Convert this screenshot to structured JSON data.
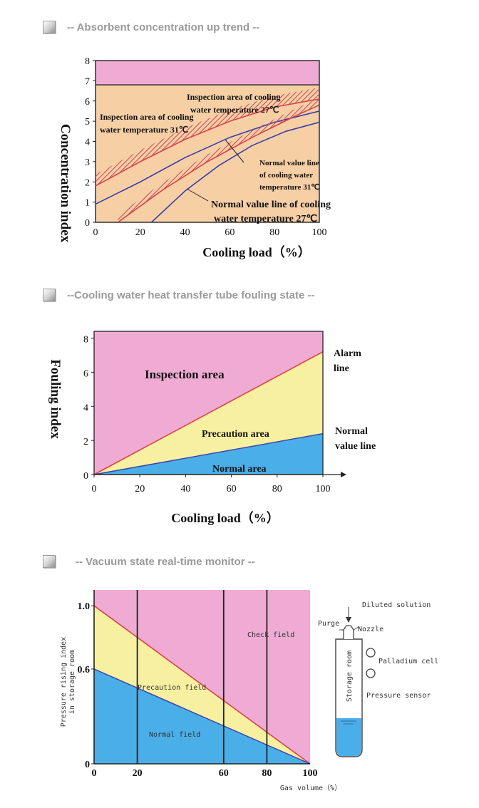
{
  "sections": [
    {
      "title": "-- Absorbent concentration up trend --"
    },
    {
      "title": "--Cooling water heat transfer tube fouling state --"
    },
    {
      "title": "-- Vacuum state real-time monitor --"
    }
  ],
  "colors": {
    "pink": "#efabd3",
    "orange": "#f6cfa5",
    "yellow": "#f7f0a0",
    "blue": "#4aaee8",
    "red": "#d9434d",
    "navy": "#3c3ea8",
    "hatch": "#c84f5a"
  },
  "chart_data": [
    {
      "type": "line",
      "xlabel": "Cooling load（%）",
      "ylabel": "Concentration index",
      "xlim": [
        0,
        100
      ],
      "ylim": [
        0,
        8
      ],
      "xticks": [
        "0",
        "20",
        "40",
        "60",
        "80",
        "100"
      ],
      "yticks": [
        "0",
        "1",
        "2",
        "3",
        "4",
        "5",
        "6",
        "7",
        "8"
      ],
      "upper_band_start": 6.8,
      "series": [
        {
          "name": "Normal value line of cooling water temperature 27℃",
          "x": [
            25,
            40,
            55,
            70,
            85,
            100
          ],
          "y": [
            0,
            1.55,
            2.8,
            3.8,
            4.5,
            4.95
          ]
        },
        {
          "name": "Normal value line of cooling water temperature 31℃",
          "x": [
            0,
            20,
            40,
            60,
            80,
            100
          ],
          "y": [
            0.9,
            2.0,
            3.2,
            4.2,
            4.95,
            5.5
          ]
        },
        {
          "name": "Inspection area of cooling water temperature 27℃",
          "x": [
            10,
            30,
            50,
            70,
            90,
            100
          ],
          "y": [
            0,
            1.6,
            3.0,
            4.2,
            5.3,
            5.8
          ]
        },
        {
          "name": "Inspection area of cooling water temperature 31℃",
          "x": [
            0,
            20,
            40,
            60,
            80,
            100
          ],
          "y": [
            1.8,
            3.0,
            4.1,
            5.0,
            5.7,
            6.1
          ]
        }
      ],
      "annotations": [
        {
          "text": "Inspection area of cooling"
        },
        {
          "text": "water temperature 27℃"
        },
        {
          "text": "Inspection area of cooling"
        },
        {
          "text": "water temperature 31℃"
        },
        {
          "text": "Normal value line"
        },
        {
          "text": "of cooling water"
        },
        {
          "text": "temperature 31℃"
        },
        {
          "text": "Normal value line of cooling"
        },
        {
          "text": "water temperature 27℃"
        }
      ]
    },
    {
      "type": "area",
      "xlabel": "Cooling load（%）",
      "ylabel": "Fouling index",
      "xlim": [
        0,
        100
      ],
      "ylim": [
        0,
        8.4
      ],
      "xticks": [
        "0",
        "20",
        "40",
        "60",
        "80",
        "100"
      ],
      "yticks": [
        "0",
        "2",
        "4",
        "6",
        "8"
      ],
      "series": [
        {
          "name": "Alarm line",
          "x": [
            0,
            100
          ],
          "y": [
            0,
            7.2
          ]
        },
        {
          "name": "Normal value line",
          "x": [
            0,
            100
          ],
          "y": [
            0,
            2.4
          ]
        }
      ],
      "regions": [
        "Inspection area",
        "Precaution area",
        "Normal area"
      ],
      "labels": {
        "alarm": [
          "Alarm",
          "line"
        ],
        "normal": [
          "Normal",
          "value line"
        ]
      }
    },
    {
      "type": "area",
      "xlabel": "Gas volume（%）",
      "ylabel": [
        "Pressure rising index",
        "in storage room"
      ],
      "xlim": [
        0,
        100
      ],
      "ylim": [
        0,
        1.1
      ],
      "xticks": [
        "0",
        "20",
        "60",
        "80",
        "100"
      ],
      "yticks": [
        "0",
        "0.6",
        "1.0"
      ],
      "vertical_lines": [
        20,
        60,
        80
      ],
      "series": [
        {
          "x": [
            0,
            100
          ],
          "y": [
            1.0,
            0
          ]
        },
        {
          "x": [
            0,
            100
          ],
          "y": [
            0.6,
            0
          ]
        }
      ],
      "regions": [
        "Check field",
        "Precaution field",
        "Normal field"
      ],
      "diagram": {
        "diluted": "Diluted solution",
        "purge": "Purge",
        "nozzle": "Nozzle",
        "palladium": "Palladium cell",
        "pressure": "Pressure sensor",
        "storage": "Storage room"
      }
    }
  ]
}
